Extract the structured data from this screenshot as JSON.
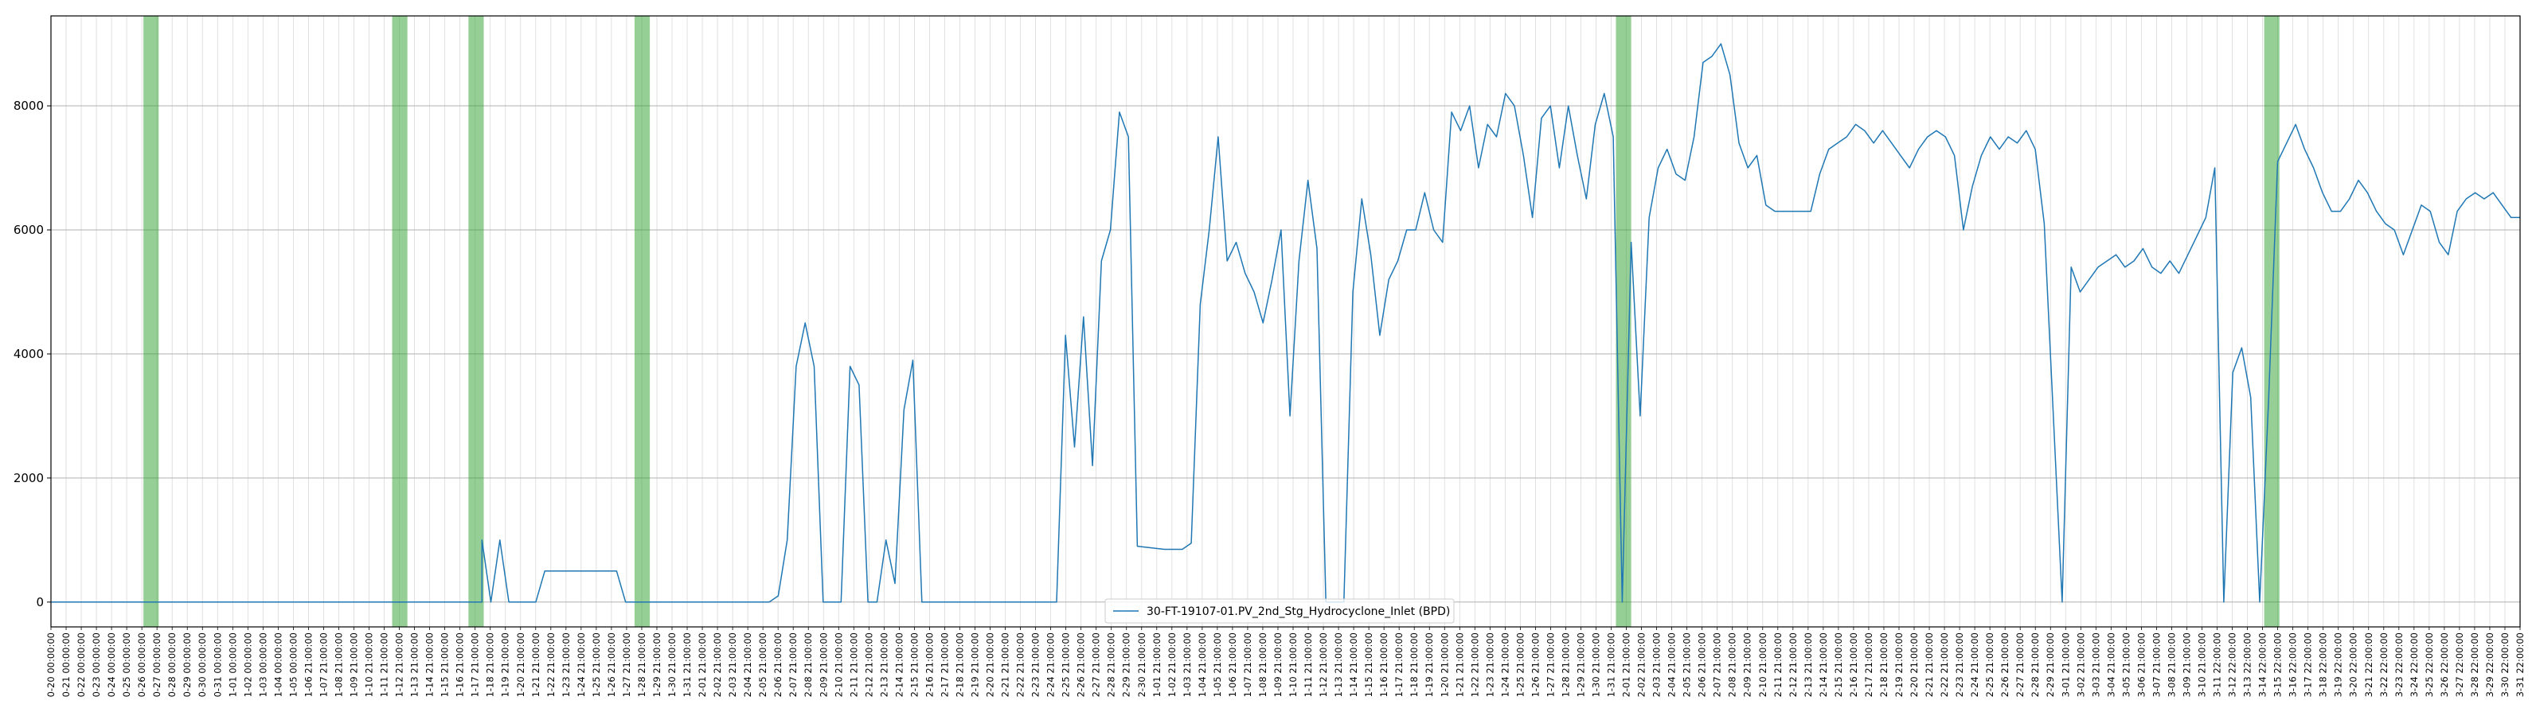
{
  "chart_data": {
    "type": "line",
    "title": "",
    "xlabel": "",
    "ylabel": "",
    "ylim": [
      -400,
      9450
    ],
    "yticks": [
      0,
      2000,
      4000,
      6000,
      8000
    ],
    "grid": true,
    "legend_position": "lower-center",
    "series": [
      {
        "name": "30-FT-19107-01.PV_2nd_Stg_Hydrocyclone_Inlet (BPD)",
        "color": "#1f77b4",
        "points": [
          [
            0,
            0
          ],
          [
            9,
            0
          ],
          [
            11,
            0
          ],
          [
            12,
            0
          ],
          [
            13,
            0
          ],
          [
            28,
            0
          ],
          [
            29,
            0
          ],
          [
            30,
            0
          ],
          [
            40,
            0
          ],
          [
            42,
            0
          ],
          [
            48,
            0
          ],
          [
            48,
            1000
          ],
          [
            49,
            0
          ],
          [
            50,
            1000
          ],
          [
            51,
            0
          ],
          [
            54,
            0
          ],
          [
            55,
            500
          ],
          [
            63,
            500
          ],
          [
            64,
            0
          ],
          [
            65,
            0
          ],
          [
            66,
            0
          ],
          [
            67,
            0
          ],
          [
            78,
            0
          ],
          [
            80,
            0
          ],
          [
            81,
            100
          ],
          [
            82,
            1000
          ],
          [
            83,
            3800
          ],
          [
            84,
            4500
          ],
          [
            85,
            3800
          ],
          [
            86,
            0
          ],
          [
            87,
            0
          ],
          [
            88,
            0
          ],
          [
            89,
            3800
          ],
          [
            90,
            3500
          ],
          [
            91,
            0
          ],
          [
            92,
            0
          ],
          [
            93,
            1000
          ],
          [
            94,
            300
          ],
          [
            95,
            3100
          ],
          [
            96,
            3900
          ],
          [
            97,
            0
          ],
          [
            110,
            0
          ],
          [
            111,
            0
          ],
          [
            112,
            0
          ],
          [
            113,
            4300
          ],
          [
            114,
            2500
          ],
          [
            115,
            4600
          ],
          [
            116,
            2200
          ],
          [
            117,
            5500
          ],
          [
            118,
            6000
          ],
          [
            119,
            7900
          ],
          [
            120,
            7500
          ],
          [
            121,
            900
          ],
          [
            124,
            850
          ],
          [
            126,
            850
          ],
          [
            127,
            950
          ],
          [
            128,
            4800
          ],
          [
            129,
            6000
          ],
          [
            130,
            7500
          ],
          [
            131,
            5500
          ],
          [
            132,
            5800
          ],
          [
            133,
            5300
          ],
          [
            134,
            5000
          ],
          [
            135,
            4500
          ],
          [
            136,
            5200
          ],
          [
            137,
            6000
          ],
          [
            138,
            3000
          ],
          [
            139,
            5500
          ],
          [
            140,
            6800
          ],
          [
            141,
            5700
          ],
          [
            142,
            0
          ],
          [
            144,
            0
          ],
          [
            145,
            5000
          ],
          [
            146,
            6500
          ],
          [
            147,
            5600
          ],
          [
            148,
            4300
          ],
          [
            149,
            5200
          ],
          [
            150,
            5500
          ],
          [
            151,
            6000
          ],
          [
            152,
            6000
          ],
          [
            153,
            6600
          ],
          [
            154,
            6000
          ],
          [
            155,
            5800
          ],
          [
            156,
            7900
          ],
          [
            157,
            7600
          ],
          [
            158,
            8000
          ],
          [
            159,
            7000
          ],
          [
            160,
            7700
          ],
          [
            161,
            7500
          ],
          [
            162,
            8200
          ],
          [
            163,
            8000
          ],
          [
            164,
            7200
          ],
          [
            165,
            6200
          ],
          [
            166,
            7800
          ],
          [
            167,
            8000
          ],
          [
            168,
            7000
          ],
          [
            169,
            8000
          ],
          [
            170,
            7200
          ],
          [
            171,
            6500
          ],
          [
            172,
            7700
          ],
          [
            173,
            8200
          ],
          [
            174,
            7500
          ],
          [
            175,
            0
          ],
          [
            176,
            5800
          ],
          [
            177,
            3000
          ],
          [
            178,
            6200
          ],
          [
            179,
            7000
          ],
          [
            180,
            7300
          ],
          [
            181,
            6900
          ],
          [
            182,
            6800
          ],
          [
            183,
            7500
          ],
          [
            184,
            8700
          ],
          [
            185,
            8800
          ],
          [
            186,
            9000
          ],
          [
            187,
            8500
          ],
          [
            188,
            7400
          ],
          [
            189,
            7000
          ],
          [
            190,
            7200
          ],
          [
            191,
            6400
          ],
          [
            192,
            6300
          ],
          [
            194,
            6300
          ],
          [
            196,
            6300
          ],
          [
            197,
            6900
          ],
          [
            198,
            7300
          ],
          [
            199,
            7400
          ],
          [
            200,
            7500
          ],
          [
            201,
            7700
          ],
          [
            202,
            7600
          ],
          [
            203,
            7400
          ],
          [
            204,
            7600
          ],
          [
            205,
            7400
          ],
          [
            206,
            7200
          ],
          [
            207,
            7000
          ],
          [
            208,
            7300
          ],
          [
            209,
            7500
          ],
          [
            210,
            7600
          ],
          [
            211,
            7500
          ],
          [
            212,
            7200
          ],
          [
            213,
            6000
          ],
          [
            214,
            6700
          ],
          [
            215,
            7200
          ],
          [
            216,
            7500
          ],
          [
            217,
            7300
          ],
          [
            218,
            7500
          ],
          [
            219,
            7400
          ],
          [
            220,
            7600
          ],
          [
            221,
            7300
          ],
          [
            222,
            6100
          ],
          [
            224,
            0
          ],
          [
            225,
            5400
          ],
          [
            226,
            5000
          ],
          [
            227,
            5200
          ],
          [
            228,
            5400
          ],
          [
            229,
            5500
          ],
          [
            230,
            5600
          ],
          [
            231,
            5400
          ],
          [
            232,
            5500
          ],
          [
            233,
            5700
          ],
          [
            234,
            5400
          ],
          [
            235,
            5300
          ],
          [
            236,
            5500
          ],
          [
            237,
            5300
          ],
          [
            238,
            5600
          ],
          [
            239,
            5900
          ],
          [
            240,
            6200
          ],
          [
            241,
            7000
          ],
          [
            242,
            0
          ],
          [
            243,
            3700
          ],
          [
            244,
            4100
          ],
          [
            245,
            3300
          ],
          [
            246,
            0
          ],
          [
            247,
            3300
          ],
          [
            248,
            7100
          ],
          [
            249,
            7400
          ],
          [
            250,
            7700
          ],
          [
            251,
            7300
          ],
          [
            252,
            7000
          ],
          [
            253,
            6600
          ],
          [
            254,
            6300
          ],
          [
            255,
            6300
          ],
          [
            256,
            6500
          ],
          [
            257,
            6800
          ],
          [
            258,
            6600
          ],
          [
            259,
            6300
          ],
          [
            260,
            6100
          ],
          [
            261,
            6000
          ],
          [
            262,
            5600
          ],
          [
            263,
            6000
          ],
          [
            264,
            6400
          ],
          [
            265,
            6300
          ],
          [
            266,
            5800
          ],
          [
            267,
            5600
          ],
          [
            268,
            6300
          ],
          [
            269,
            6500
          ],
          [
            270,
            6600
          ],
          [
            271,
            6500
          ],
          [
            272,
            6600
          ],
          [
            273,
            6400
          ],
          [
            274,
            6200
          ],
          [
            275,
            6200
          ]
        ]
      }
    ],
    "shaded_regions": [
      {
        "start": 10.3,
        "end": 12.0,
        "color": "#2ca02c"
      },
      {
        "start": 38.0,
        "end": 39.7,
        "color": "#2ca02c"
      },
      {
        "start": 46.5,
        "end": 48.2,
        "color": "#2ca02c"
      },
      {
        "start": 65.0,
        "end": 66.7,
        "color": "#2ca02c"
      },
      {
        "start": 174.3,
        "end": 176.0,
        "color": "#2ca02c"
      },
      {
        "start": 246.5,
        "end": 248.2,
        "color": "#2ca02c"
      }
    ],
    "x_tick_labels": [
      "0-20 00:00:00",
      "0-21 00:00:00",
      "0-22 00:00:00",
      "0-23 00:00:00",
      "0-24 00:00:00",
      "0-25 00:00:00",
      "0-26 00:00:00",
      "0-27 00:00:00",
      "0-28 00:00:00",
      "0-29 00:00:00",
      "0-30 00:00:00",
      "0-31 00:00:00",
      "1-01 00:00:00",
      "1-02 00:00:00",
      "1-03 00:00:00",
      "1-04 00:00:00",
      "1-05 00:00:00",
      "1-06 21:00:00",
      "1-07 21:00:00",
      "1-08 21:00:00",
      "1-09 21:00:00",
      "1-10 21:00:00",
      "1-11 21:00:00",
      "1-12 21:00:00",
      "1-13 21:00:00",
      "1-14 21:00:00",
      "1-15 21:00:00",
      "1-16 21:00:00",
      "1-17 21:00:00",
      "1-18 21:00:00",
      "1-19 21:00:00",
      "1-20 21:00:00",
      "1-21 21:00:00",
      "1-22 21:00:00",
      "1-23 21:00:00",
      "1-24 21:00:00",
      "1-25 21:00:00",
      "1-26 21:00:00",
      "1-27 21:00:00",
      "1-28 21:00:00",
      "1-29 21:00:00",
      "1-30 21:00:00",
      "1-31 21:00:00",
      "2-01 21:00:00",
      "2-02 21:00:00",
      "2-03 21:00:00",
      "2-04 21:00:00",
      "2-05 21:00:00",
      "2-06 21:00:00",
      "2-07 21:00:00",
      "2-08 21:00:00",
      "2-09 21:00:00",
      "2-10 21:00:00",
      "2-11 21:00:00",
      "2-12 21:00:00",
      "2-13 21:00:00",
      "2-14 21:00:00",
      "2-15 21:00:00",
      "2-16 21:00:00",
      "2-17 21:00:00",
      "2-18 21:00:00",
      "2-19 21:00:00",
      "2-20 21:00:00",
      "2-21 21:00:00",
      "2-22 21:00:00",
      "2-23 21:00:00",
      "2-24 21:00:00",
      "2-25 21:00:00",
      "2-26 21:00:00",
      "2-27 21:00:00",
      "2-28 21:00:00",
      "2-29 21:00:00",
      "2-30 21:00:00",
      "1-01 21:00:00",
      "1-02 21:00:00",
      "1-03 21:00:00",
      "1-04 21:00:00",
      "1-05 21:00:00",
      "1-06 21:00:00",
      "1-07 21:00:00",
      "1-08 21:00:00",
      "1-09 21:00:00",
      "1-10 21:00:00",
      "1-11 21:00:00",
      "1-12 21:00:00",
      "1-13 21:00:00",
      "1-14 21:00:00",
      "1-15 21:00:00",
      "1-16 21:00:00",
      "1-17 21:00:00",
      "1-18 21:00:00",
      "1-19 21:00:00",
      "1-20 21:00:00",
      "1-21 21:00:00",
      "1-22 21:00:00",
      "1-23 21:00:00",
      "1-24 21:00:00",
      "1-25 21:00:00",
      "1-26 21:00:00",
      "1-27 21:00:00",
      "1-28 21:00:00",
      "1-29 21:00:00",
      "1-30 21:00:00",
      "1-31 21:00:00",
      "2-01 21:00:00",
      "2-02 21:00:00",
      "2-03 21:00:00",
      "2-04 21:00:00",
      "2-05 21:00:00",
      "2-06 21:00:00",
      "2-07 21:00:00",
      "2-08 21:00:00",
      "2-09 21:00:00",
      "2-10 21:00:00",
      "2-11 21:00:00",
      "2-12 21:00:00",
      "2-13 21:00:00",
      "2-14 21:00:00",
      "2-15 21:00:00",
      "2-16 21:00:00",
      "2-17 21:00:00",
      "2-18 21:00:00",
      "2-19 21:00:00",
      "2-20 21:00:00",
      "2-21 21:00:00",
      "2-22 21:00:00",
      "2-23 21:00:00",
      "2-24 21:00:00",
      "2-25 21:00:00",
      "2-26 21:00:00",
      "2-27 21:00:00",
      "2-28 21:00:00",
      "2-29 21:00:00",
      "3-01 21:00:00",
      "3-02 21:00:00",
      "3-03 21:00:00",
      "3-04 21:00:00",
      "3-05 21:00:00",
      "3-06 21:00:00",
      "3-07 21:00:00",
      "3-08 21:00:00",
      "3-09 21:00:00",
      "3-10 21:00:00",
      "3-11 22:00:00",
      "3-12 22:00:00",
      "3-13 22:00:00",
      "3-14 22:00:00",
      "3-15 22:00:00",
      "3-16 22:00:00",
      "3-17 22:00:00",
      "3-18 22:00:00",
      "3-19 22:00:00",
      "3-20 22:00:00",
      "3-21 22:00:00",
      "3-22 22:00:00",
      "3-23 22:00:00",
      "3-24 22:00:00",
      "3-25 22:00:00",
      "3-26 22:00:00",
      "3-27 22:00:00",
      "3-28 22:00:00",
      "3-29 22:00:00",
      "3-30 22:00:00",
      "3-31 22:00:00"
    ]
  }
}
